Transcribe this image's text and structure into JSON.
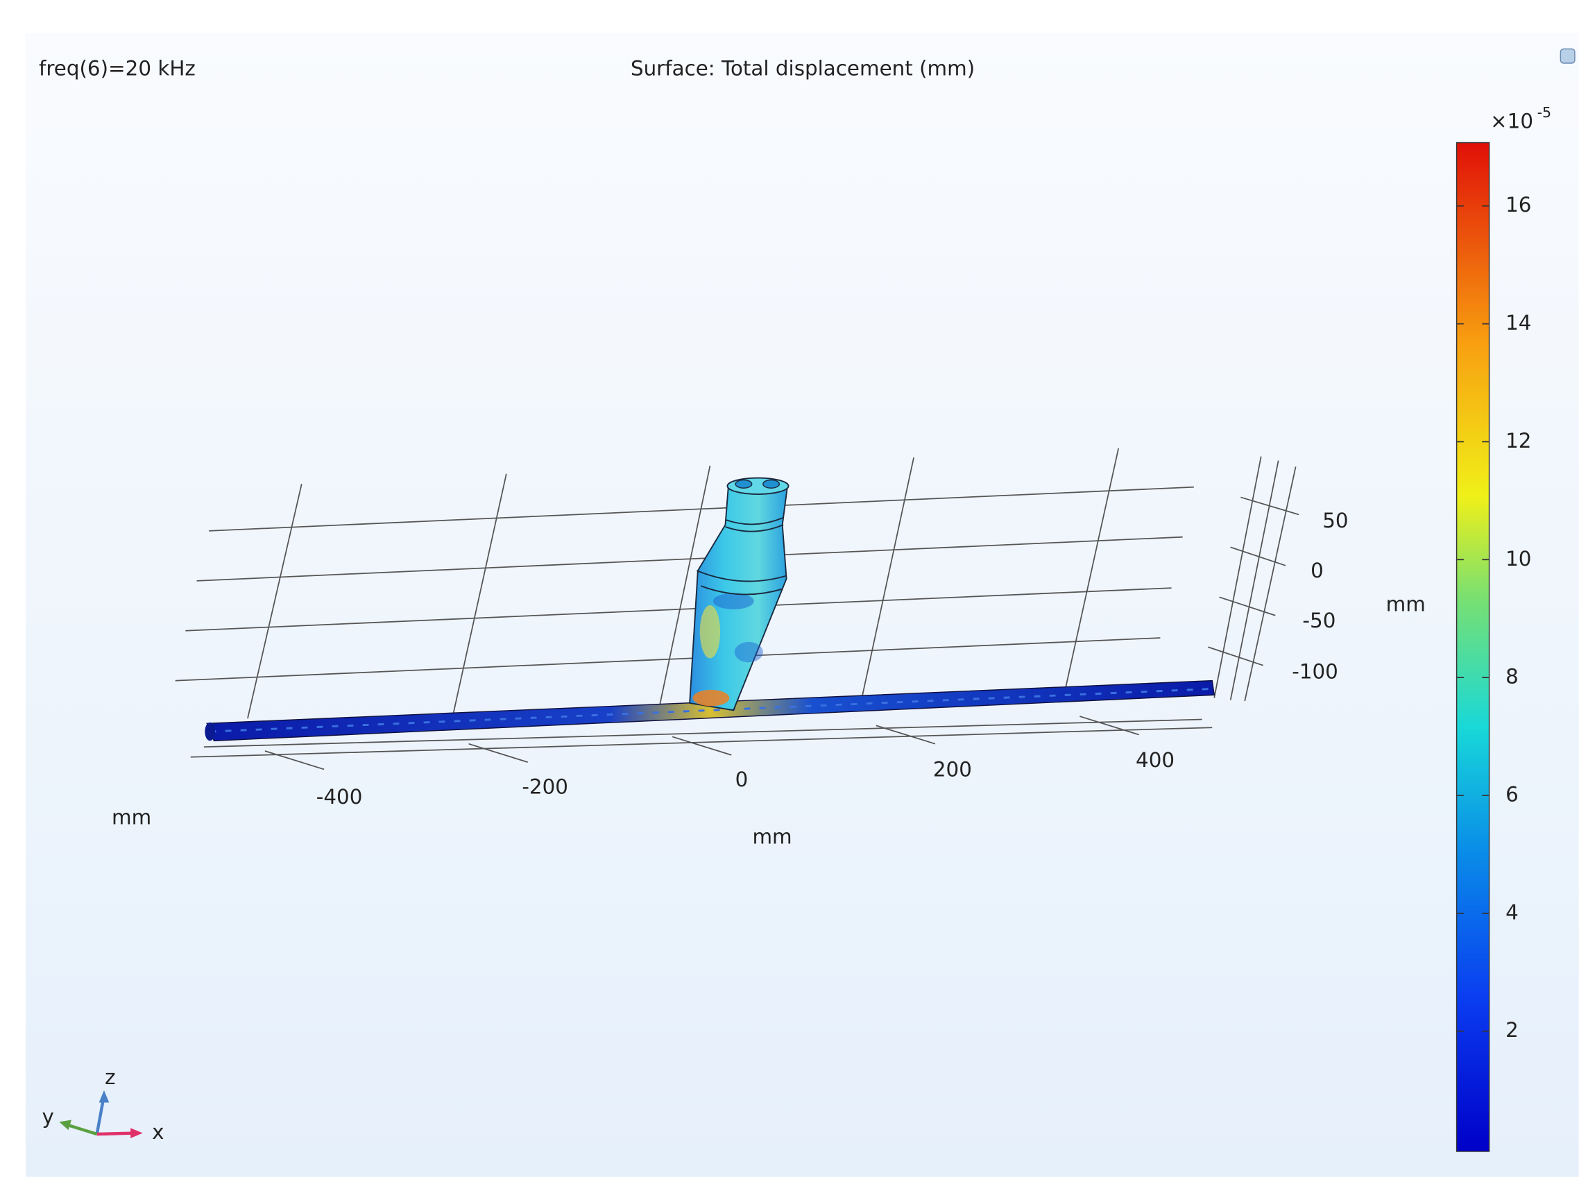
{
  "header": {
    "left": "freq(6)=20 kHz",
    "title": "Surface: Total displacement (mm)"
  },
  "axes": {
    "x": {
      "ticks": [
        "-400",
        "-200",
        "0",
        "200",
        "400"
      ],
      "unit": "mm"
    },
    "y": {
      "unit": "mm"
    },
    "z": {
      "ticks": [
        "50",
        "0",
        "-50",
        "-100"
      ],
      "unit": "mm"
    }
  },
  "colorbar": {
    "multiplier": "×10",
    "exponent": "-5",
    "ticks": [
      "2",
      "4",
      "6",
      "8",
      "10",
      "12",
      "14",
      "16"
    ]
  },
  "triad": {
    "x": "x",
    "y": "y",
    "z": "z"
  }
}
